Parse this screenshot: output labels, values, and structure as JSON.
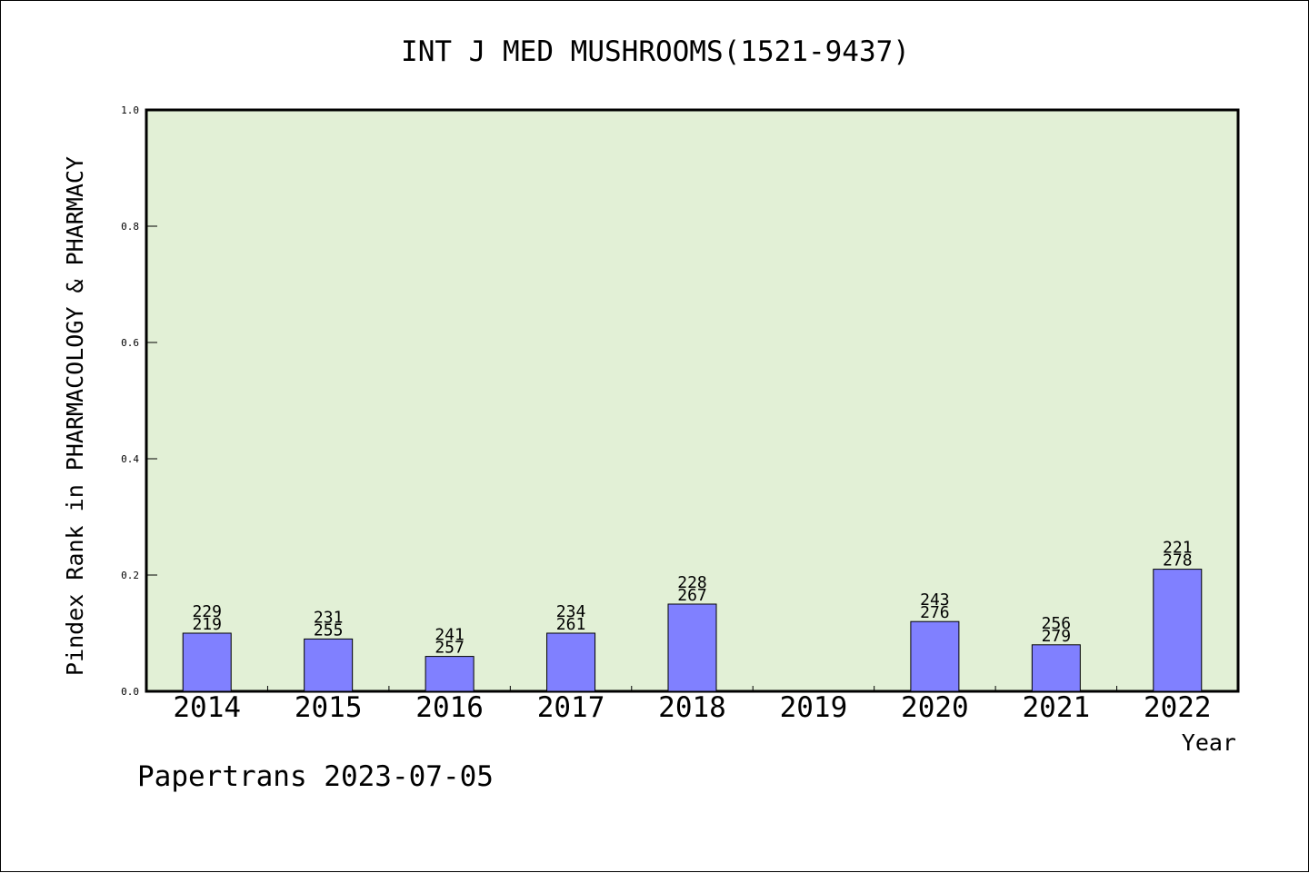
{
  "chart_data": {
    "type": "bar",
    "title": "INT J MED MUSHROOMS(1521-9437)",
    "xlabel": "Year",
    "ylabel": "Pindex Rank in PHARMACOLOGY & PHARMACY",
    "ylim": [
      0.0,
      1.0
    ],
    "yticks": [
      "0.0",
      "0.2",
      "0.4",
      "0.6",
      "0.8",
      "1.0"
    ],
    "categories": [
      "2014",
      "2015",
      "2016",
      "2017",
      "2018",
      "2019",
      "2020",
      "2021",
      "2022"
    ],
    "values": [
      0.1,
      0.09,
      0.06,
      0.1,
      0.15,
      null,
      0.12,
      0.08,
      0.21
    ],
    "labels_top": [
      "229",
      "231",
      "241",
      "234",
      "228",
      "",
      "243",
      "256",
      "221"
    ],
    "labels_bottom": [
      "219",
      "255",
      "257",
      "261",
      "267",
      "",
      "276",
      "279",
      "278"
    ],
    "grid": false,
    "colors": {
      "plot_background": "#e2f0d6",
      "bar_fill": "#8080ff",
      "bar_stroke": "#000000"
    }
  },
  "footer": "Papertrans 2023-07-05"
}
